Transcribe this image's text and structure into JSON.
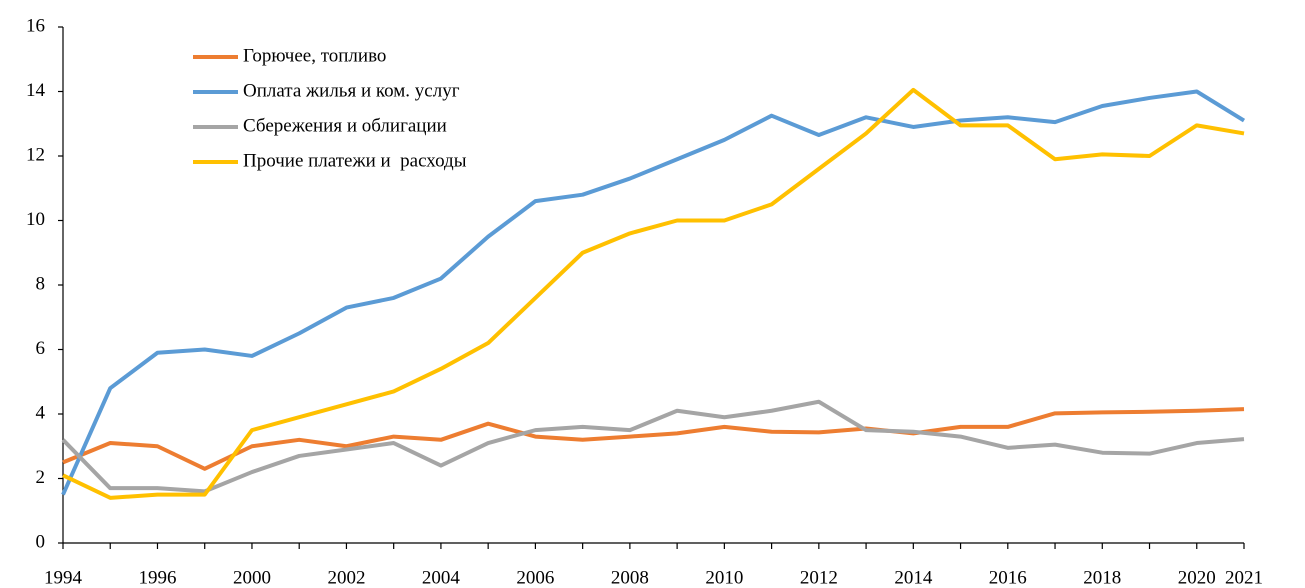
{
  "chart_data": {
    "type": "line",
    "categories": [
      "1994",
      null,
      "1996",
      null,
      "2000",
      null,
      "2002",
      null,
      "2004",
      null,
      "2006",
      null,
      "2008",
      null,
      "2010",
      null,
      "2012",
      null,
      "2014",
      null,
      "2016",
      null,
      "2018",
      null,
      "2020",
      "2021"
    ],
    "ylim": [
      0,
      16
    ],
    "yticks": [
      0,
      2,
      4,
      6,
      8,
      10,
      12,
      14,
      16
    ],
    "grid": false,
    "legend": "upper left",
    "series": [
      {
        "name": "Горючее, топливо",
        "color": "#ed7d31",
        "values": [
          2.5,
          3.1,
          3.0,
          2.3,
          3.0,
          3.2,
          3.0,
          3.3,
          3.2,
          3.7,
          3.3,
          3.2,
          3.3,
          3.4,
          3.6,
          3.45,
          3.43,
          3.55,
          3.4,
          3.6,
          3.6,
          4.02,
          4.05,
          4.07,
          4.1,
          4.15
        ]
      },
      {
        "name": "Оплата жилья и ком. услуг",
        "color": "#5b9bd5",
        "values": [
          1.5,
          4.8,
          5.9,
          6.0,
          5.8,
          6.5,
          7.3,
          7.6,
          8.2,
          9.5,
          10.6,
          10.8,
          11.3,
          11.9,
          12.5,
          13.25,
          12.65,
          13.2,
          12.9,
          13.1,
          13.2,
          13.05,
          13.55,
          13.8,
          14.0,
          13.1
        ]
      },
      {
        "name": "Сбережения и облигации",
        "color": "#a5a5a5",
        "values": [
          3.2,
          1.7,
          1.7,
          1.6,
          2.2,
          2.7,
          2.9,
          3.1,
          2.4,
          3.1,
          3.5,
          3.6,
          3.5,
          4.1,
          3.9,
          4.1,
          4.38,
          3.5,
          3.45,
          3.3,
          2.95,
          3.05,
          2.8,
          2.77,
          3.1,
          3.22
        ]
      },
      {
        "name": "Прочие платежи и  расходы",
        "color": "#ffc000",
        "values": [
          2.1,
          1.4,
          1.5,
          1.5,
          3.5,
          3.9,
          4.3,
          4.7,
          5.4,
          6.2,
          7.6,
          9.0,
          9.6,
          10.0,
          10.0,
          10.5,
          11.6,
          12.7,
          14.05,
          12.95,
          12.95,
          11.9,
          12.05,
          12.0,
          12.95,
          12.7
        ]
      }
    ]
  }
}
